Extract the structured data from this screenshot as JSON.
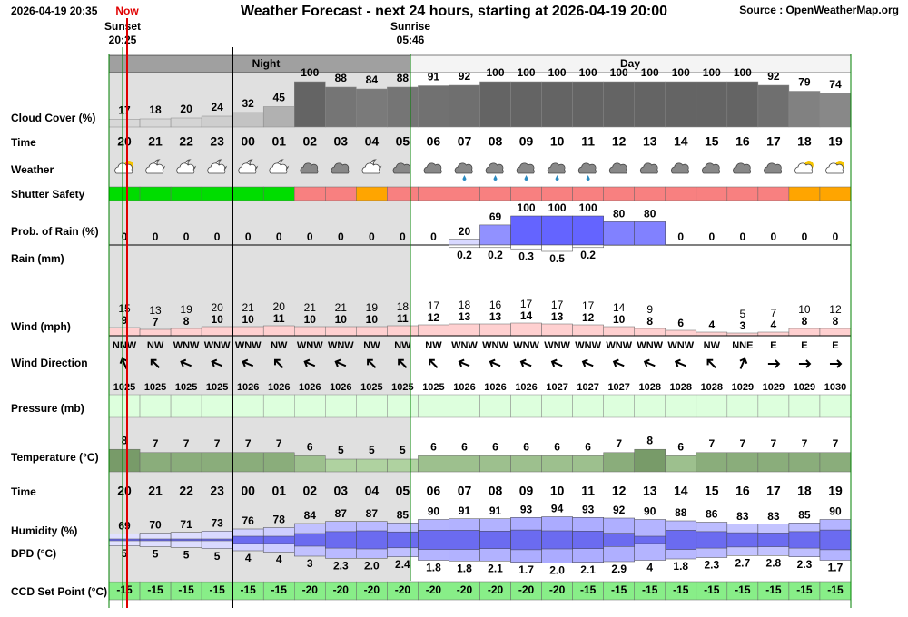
{
  "header": {
    "datetime": "2026-04-19 20:35",
    "now": "Now",
    "title": "Weather Forecast - next 24 hours, starting at 2026-04-19 20:00",
    "source": "Source : OpenWeatherMap.org",
    "sunset": "Sunset",
    "sunset_time": "20:25",
    "sunrise": "Sunrise",
    "sunrise_time": "05:46",
    "night": "Night",
    "day": "Day"
  },
  "labels": {
    "cloud": "Cloud Cover (%)",
    "time": "Time",
    "weather": "Weather",
    "shutter": "Shutter Safety",
    "prob_rain": "Prob. of Rain (%)",
    "rain": "Rain (mm)",
    "wind": "Wind (mph)",
    "wind_dir": "Wind Direction",
    "pressure": "Pressure (mb)",
    "temperature": "Temperature (°C)",
    "time2": "Time",
    "humidity": "Humidity (%)",
    "dpd": "DPD (°C)",
    "ccd": "CCD Set Point (°C)"
  },
  "hours": [
    "20",
    "21",
    "22",
    "23",
    "00",
    "01",
    "02",
    "03",
    "04",
    "05",
    "06",
    "07",
    "08",
    "09",
    "10",
    "11",
    "12",
    "13",
    "14",
    "15",
    "16",
    "17",
    "18",
    "19"
  ],
  "cloud_cover": [
    17,
    18,
    20,
    24,
    32,
    45,
    100,
    88,
    84,
    88,
    91,
    92,
    100,
    100,
    100,
    100,
    100,
    100,
    100,
    100,
    100,
    92,
    79,
    74
  ],
  "shutter_safety": [
    "#00dd00",
    "#00dd00",
    "#00dd00",
    "#00dd00",
    "#00dd00",
    "#00dd00",
    "#f88080",
    "#f88080",
    "#ffa500",
    "#f88080",
    "#f88080",
    "#f88080",
    "#f88080",
    "#f88080",
    "#f88080",
    "#f88080",
    "#f88080",
    "#f88080",
    "#f88080",
    "#f88080",
    "#f88080",
    "#f88080",
    "#ffa500",
    "#ffa500"
  ],
  "prob_rain": [
    0,
    0,
    0,
    0,
    0,
    0,
    0,
    0,
    0,
    0,
    0,
    20,
    69,
    100,
    100,
    100,
    80,
    80,
    0,
    0,
    0,
    0,
    0,
    0
  ],
  "rain": [
    null,
    null,
    null,
    null,
    null,
    null,
    null,
    null,
    null,
    null,
    null,
    0.2,
    0.2,
    0.3,
    0.5,
    0.2,
    null,
    null,
    null,
    null,
    null,
    null,
    null,
    null
  ],
  "wind_gust": [
    15,
    13,
    19,
    20,
    21,
    20,
    21,
    21,
    19,
    18,
    17,
    18,
    16,
    17,
    17,
    17,
    14,
    9,
    null,
    null,
    5,
    7,
    10,
    12
  ],
  "wind_speed": [
    9,
    7,
    8,
    10,
    10,
    11,
    10,
    10,
    10,
    11,
    12,
    13,
    13,
    14,
    13,
    12,
    10,
    8,
    6,
    4,
    3,
    4,
    8,
    8
  ],
  "wind_direction": [
    "NNW",
    "NW",
    "WNW",
    "WNW",
    "WNW",
    "NW",
    "WNW",
    "WNW",
    "NW",
    "NW",
    "NW",
    "WNW",
    "WNW",
    "WNW",
    "WNW",
    "WNW",
    "WNW",
    "WNW",
    "WNW",
    "NW",
    "NNE",
    "E",
    "E",
    "E"
  ],
  "pressure": [
    1025,
    1025,
    1025,
    1025,
    1026,
    1026,
    1026,
    1026,
    1025,
    1025,
    1025,
    1026,
    1026,
    1026,
    1027,
    1027,
    1027,
    1028,
    1028,
    1028,
    1029,
    1029,
    1029,
    1030
  ],
  "temperature": [
    8,
    7,
    7,
    7,
    7,
    7,
    6,
    5,
    5,
    5,
    6,
    6,
    6,
    6,
    6,
    6,
    7,
    8,
    6,
    7,
    7,
    7,
    7,
    7
  ],
  "humidity": [
    69,
    70,
    71,
    73,
    76,
    78,
    84,
    87,
    87,
    85,
    90,
    91,
    91,
    93,
    94,
    93,
    92,
    90,
    88,
    86,
    83,
    83,
    85,
    90
  ],
  "dpd": [
    5,
    5,
    5,
    5,
    4,
    4,
    3,
    2.3,
    {
      "value": 2.0,
      "label": "2.0"
    },
    2.4,
    1.8,
    1.8,
    2.1,
    1.7,
    {
      "value": 2.0,
      "label": "2.0"
    },
    2.1,
    2.9,
    4,
    1.8,
    2.3,
    2.7,
    2.8,
    2.3,
    1.7
  ],
  "ccd_set_point": [
    -15,
    -15,
    -15,
    -15,
    -15,
    -15,
    -20,
    -20,
    -20,
    -20,
    -20,
    -20,
    -20,
    -20,
    -20,
    -15,
    -15,
    -15,
    -15,
    -15,
    -15,
    -15,
    -15,
    -15
  ]
}
